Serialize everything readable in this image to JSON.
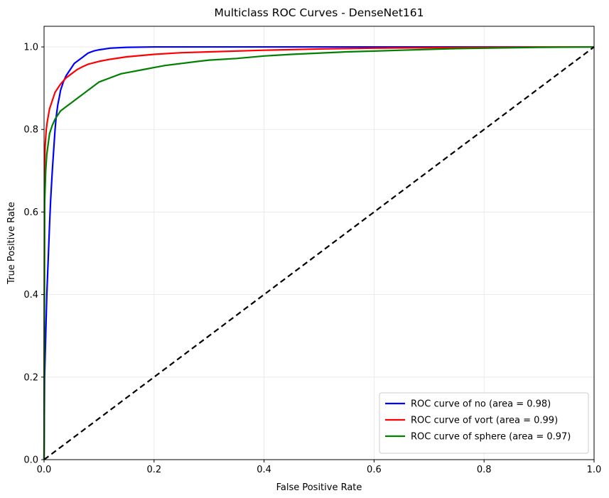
{
  "chart_data": {
    "type": "line",
    "title": "Multiclass ROC Curves - DenseNet161",
    "xlabel": "False Positive Rate",
    "ylabel": "True Positive Rate",
    "xlim": [
      0.0,
      1.0
    ],
    "ylim": [
      0.0,
      1.05
    ],
    "xticks": [
      0.0,
      0.2,
      0.4,
      0.6,
      0.8,
      1.0
    ],
    "yticks": [
      0.0,
      0.2,
      0.4,
      0.6,
      0.8,
      1.0
    ],
    "xtick_labels": [
      "0.0",
      "0.2",
      "0.4",
      "0.6",
      "0.8",
      "1.0"
    ],
    "ytick_labels": [
      "0.0",
      "0.2",
      "0.4",
      "0.6",
      "0.8",
      "1.0"
    ],
    "grid": true,
    "legend_position": "lower-right",
    "series": [
      {
        "name": "ROC curve of no (area = 0.98)",
        "color": "#0000ff",
        "x": [
          0.0,
          0.001,
          0.003,
          0.005,
          0.008,
          0.01,
          0.012,
          0.015,
          0.018,
          0.02,
          0.022,
          0.025,
          0.028,
          0.03,
          0.035,
          0.04,
          0.045,
          0.05,
          0.055,
          0.06,
          0.065,
          0.07,
          0.075,
          0.08,
          0.09,
          0.1,
          0.12,
          0.15,
          0.2,
          0.3,
          0.5,
          0.7,
          0.9,
          1.0
        ],
        "y": [
          0.0,
          0.2,
          0.3,
          0.4,
          0.5,
          0.57,
          0.63,
          0.7,
          0.76,
          0.8,
          0.83,
          0.86,
          0.88,
          0.895,
          0.915,
          0.93,
          0.94,
          0.95,
          0.96,
          0.965,
          0.97,
          0.975,
          0.98,
          0.985,
          0.99,
          0.993,
          0.997,
          0.999,
          1.0,
          1.0,
          1.0,
          1.0,
          1.0,
          1.0
        ]
      },
      {
        "name": "ROC curve of vort (area = 0.99)",
        "color": "#ff0000",
        "x": [
          0.0,
          0.001,
          0.002,
          0.004,
          0.006,
          0.008,
          0.01,
          0.015,
          0.02,
          0.025,
          0.03,
          0.04,
          0.05,
          0.06,
          0.07,
          0.08,
          0.1,
          0.12,
          0.15,
          0.2,
          0.25,
          0.3,
          0.4,
          0.5,
          0.6,
          0.7,
          0.8,
          0.9,
          1.0
        ],
        "y": [
          0.0,
          0.72,
          0.76,
          0.8,
          0.82,
          0.835,
          0.85,
          0.87,
          0.89,
          0.9,
          0.91,
          0.925,
          0.935,
          0.945,
          0.952,
          0.958,
          0.965,
          0.97,
          0.976,
          0.982,
          0.986,
          0.988,
          0.992,
          0.995,
          0.997,
          0.998,
          0.999,
          1.0,
          1.0
        ]
      },
      {
        "name": "ROC curve of sphere (area = 0.97)",
        "color": "#008000",
        "x": [
          0.0,
          0.001,
          0.003,
          0.005,
          0.008,
          0.01,
          0.015,
          0.02,
          0.025,
          0.03,
          0.04,
          0.05,
          0.06,
          0.07,
          0.08,
          0.09,
          0.1,
          0.12,
          0.14,
          0.16,
          0.18,
          0.2,
          0.22,
          0.25,
          0.28,
          0.3,
          0.35,
          0.4,
          0.45,
          0.5,
          0.55,
          0.6,
          0.65,
          0.7,
          0.75,
          0.8,
          0.9,
          1.0
        ],
        "y": [
          0.0,
          0.62,
          0.7,
          0.74,
          0.77,
          0.79,
          0.81,
          0.825,
          0.835,
          0.845,
          0.855,
          0.865,
          0.875,
          0.885,
          0.895,
          0.905,
          0.915,
          0.925,
          0.935,
          0.94,
          0.945,
          0.95,
          0.955,
          0.96,
          0.965,
          0.968,
          0.972,
          0.978,
          0.982,
          0.985,
          0.988,
          0.99,
          0.992,
          0.994,
          0.996,
          0.997,
          0.999,
          1.0
        ]
      },
      {
        "name": "",
        "color": "#000000",
        "dashed": true,
        "x": [
          0.0,
          1.0
        ],
        "y": [
          0.0,
          1.0
        ]
      }
    ]
  }
}
